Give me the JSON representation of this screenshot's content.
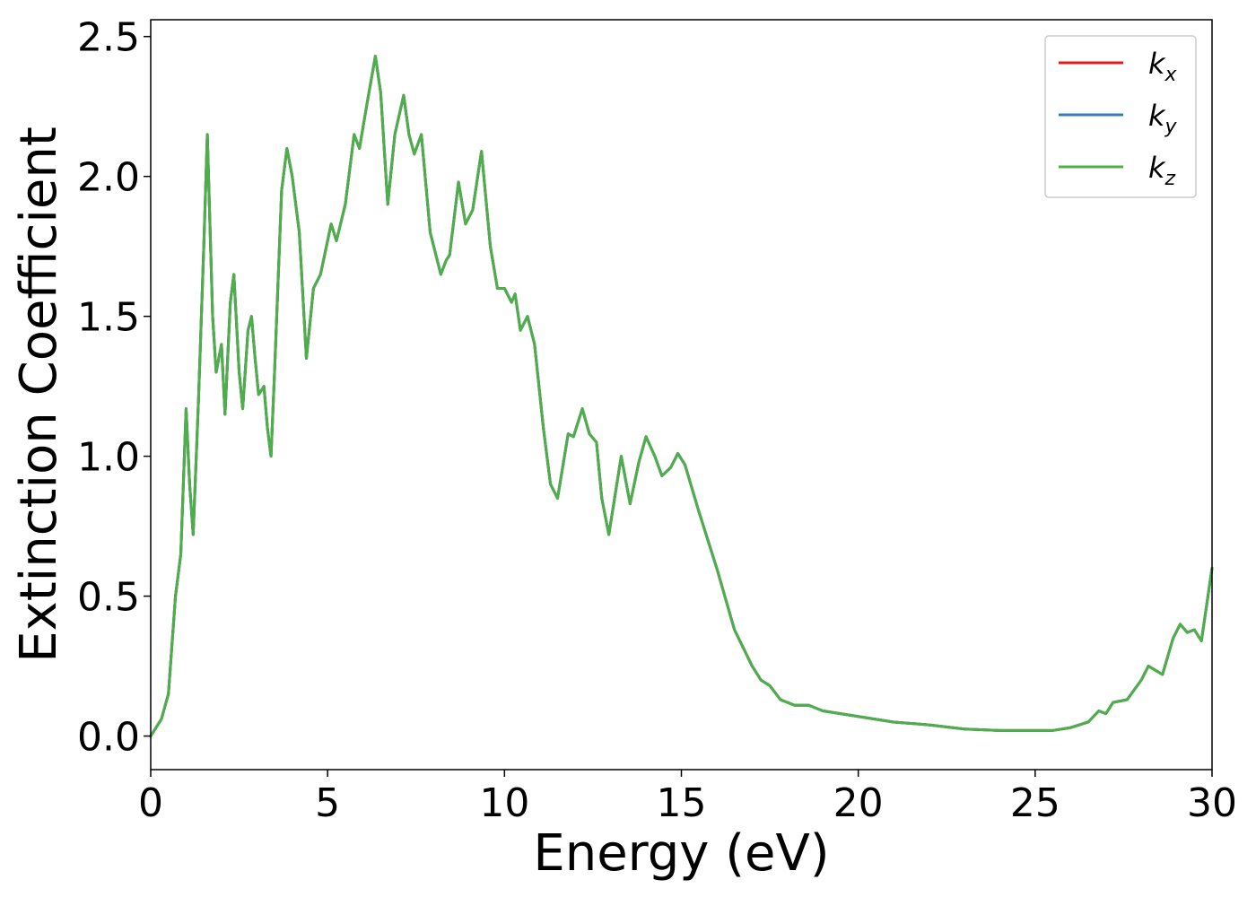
{
  "chart_data": {
    "type": "line",
    "title": "",
    "xlabel": "Energy (eV)",
    "ylabel": "Extinction Coefficient",
    "xlim": [
      0,
      30
    ],
    "ylim": [
      -0.12,
      2.56
    ],
    "xticks": [
      0,
      5,
      10,
      15,
      20,
      25,
      30
    ],
    "xtick_labels": [
      "0",
      "5",
      "10",
      "15",
      "20",
      "25",
      "30"
    ],
    "yticks": [
      0.0,
      0.5,
      1.0,
      1.5,
      2.0,
      2.5
    ],
    "ytick_labels": [
      "0.0",
      "0.5",
      "1.0",
      "1.5",
      "2.0",
      "2.5"
    ],
    "grid": false,
    "legend_position": "top-right",
    "series": [
      {
        "name": "k_x",
        "label_main": "k",
        "label_sub": "x",
        "color": "#e41a1c",
        "x": [
          0,
          0.3,
          0.5,
          0.7,
          0.85,
          1.0,
          1.1,
          1.2,
          1.35,
          1.5,
          1.6,
          1.75,
          1.85,
          2.0,
          2.1,
          2.25,
          2.35,
          2.5,
          2.6,
          2.75,
          2.85,
          2.95,
          3.05,
          3.2,
          3.3,
          3.4,
          3.5,
          3.7,
          3.85,
          4.0,
          4.2,
          4.4,
          4.6,
          4.8,
          5.1,
          5.25,
          5.5,
          5.75,
          5.9,
          6.1,
          6.35,
          6.5,
          6.7,
          6.9,
          7.15,
          7.3,
          7.45,
          7.65,
          7.9,
          8.2,
          8.35,
          8.45,
          8.7,
          8.9,
          9.1,
          9.35,
          9.6,
          9.8,
          10.0,
          10.2,
          10.3,
          10.45,
          10.65,
          10.85,
          11.1,
          11.3,
          11.5,
          11.8,
          11.95,
          12.2,
          12.4,
          12.6,
          12.75,
          12.95,
          13.3,
          13.55,
          13.8,
          14.0,
          14.25,
          14.45,
          14.7,
          14.9,
          15.1,
          15.5,
          16.0,
          16.5,
          17.0,
          17.25,
          17.5,
          17.8,
          18.2,
          18.6,
          19.0,
          19.5,
          20.0,
          21.0,
          22.0,
          23.0,
          24.0,
          25.0,
          25.5,
          26.0,
          26.5,
          26.8,
          27.0,
          27.2,
          27.6,
          28.0,
          28.2,
          28.6,
          28.9,
          29.1,
          29.3,
          29.5,
          29.7,
          30.0
        ],
        "y": [
          0.0,
          0.06,
          0.15,
          0.5,
          0.65,
          1.17,
          0.9,
          0.72,
          1.2,
          1.75,
          2.15,
          1.5,
          1.3,
          1.4,
          1.15,
          1.55,
          1.65,
          1.3,
          1.17,
          1.45,
          1.5,
          1.35,
          1.22,
          1.25,
          1.1,
          1.0,
          1.3,
          1.95,
          2.1,
          2.0,
          1.8,
          1.35,
          1.6,
          1.65,
          1.83,
          1.77,
          1.9,
          2.15,
          2.1,
          2.25,
          2.43,
          2.3,
          1.9,
          2.15,
          2.29,
          2.15,
          2.08,
          2.15,
          1.8,
          1.65,
          1.7,
          1.72,
          1.98,
          1.83,
          1.88,
          2.09,
          1.75,
          1.6,
          1.6,
          1.55,
          1.58,
          1.45,
          1.5,
          1.4,
          1.1,
          0.9,
          0.85,
          1.08,
          1.07,
          1.17,
          1.08,
          1.05,
          0.85,
          0.72,
          1.0,
          0.83,
          0.98,
          1.07,
          1.0,
          0.93,
          0.96,
          1.01,
          0.97,
          0.8,
          0.6,
          0.38,
          0.25,
          0.2,
          0.18,
          0.13,
          0.11,
          0.11,
          0.09,
          0.08,
          0.07,
          0.05,
          0.04,
          0.025,
          0.02,
          0.02,
          0.02,
          0.03,
          0.05,
          0.09,
          0.08,
          0.12,
          0.13,
          0.2,
          0.25,
          0.22,
          0.35,
          0.4,
          0.37,
          0.38,
          0.34,
          0.6
        ]
      },
      {
        "name": "k_y",
        "label_main": "k",
        "label_sub": "y",
        "color": "#377eb8",
        "x": [
          0,
          0.3,
          0.5,
          0.7,
          0.85,
          1.0,
          1.1,
          1.2,
          1.35,
          1.5,
          1.6,
          1.75,
          1.85,
          2.0,
          2.1,
          2.25,
          2.35,
          2.5,
          2.6,
          2.75,
          2.85,
          2.95,
          3.05,
          3.2,
          3.3,
          3.4,
          3.5,
          3.7,
          3.85,
          4.0,
          4.2,
          4.4,
          4.6,
          4.8,
          5.1,
          5.25,
          5.5,
          5.75,
          5.9,
          6.1,
          6.35,
          6.5,
          6.7,
          6.9,
          7.15,
          7.3,
          7.45,
          7.65,
          7.9,
          8.2,
          8.35,
          8.45,
          8.7,
          8.9,
          9.1,
          9.35,
          9.6,
          9.8,
          10.0,
          10.2,
          10.3,
          10.45,
          10.65,
          10.85,
          11.1,
          11.3,
          11.5,
          11.8,
          11.95,
          12.2,
          12.4,
          12.6,
          12.75,
          12.95,
          13.3,
          13.55,
          13.8,
          14.0,
          14.25,
          14.45,
          14.7,
          14.9,
          15.1,
          15.5,
          16.0,
          16.5,
          17.0,
          17.25,
          17.5,
          17.8,
          18.2,
          18.6,
          19.0,
          19.5,
          20.0,
          21.0,
          22.0,
          23.0,
          24.0,
          25.0,
          25.5,
          26.0,
          26.5,
          26.8,
          27.0,
          27.2,
          27.6,
          28.0,
          28.2,
          28.6,
          28.9,
          29.1,
          29.3,
          29.5,
          29.7,
          30.0
        ],
        "y": [
          0.0,
          0.06,
          0.15,
          0.5,
          0.65,
          1.17,
          0.9,
          0.72,
          1.2,
          1.75,
          2.15,
          1.5,
          1.3,
          1.4,
          1.15,
          1.55,
          1.65,
          1.3,
          1.17,
          1.45,
          1.5,
          1.35,
          1.22,
          1.25,
          1.1,
          1.0,
          1.3,
          1.95,
          2.1,
          2.0,
          1.8,
          1.35,
          1.6,
          1.65,
          1.83,
          1.77,
          1.9,
          2.15,
          2.1,
          2.25,
          2.43,
          2.3,
          1.9,
          2.15,
          2.29,
          2.15,
          2.08,
          2.15,
          1.8,
          1.65,
          1.7,
          1.72,
          1.98,
          1.83,
          1.88,
          2.09,
          1.75,
          1.6,
          1.6,
          1.55,
          1.58,
          1.45,
          1.5,
          1.4,
          1.1,
          0.9,
          0.85,
          1.08,
          1.07,
          1.17,
          1.08,
          1.05,
          0.85,
          0.72,
          1.0,
          0.83,
          0.98,
          1.07,
          1.0,
          0.93,
          0.96,
          1.01,
          0.97,
          0.8,
          0.6,
          0.38,
          0.25,
          0.2,
          0.18,
          0.13,
          0.11,
          0.11,
          0.09,
          0.08,
          0.07,
          0.05,
          0.04,
          0.025,
          0.02,
          0.02,
          0.02,
          0.03,
          0.05,
          0.09,
          0.08,
          0.12,
          0.13,
          0.2,
          0.25,
          0.22,
          0.35,
          0.4,
          0.37,
          0.38,
          0.34,
          0.6
        ]
      },
      {
        "name": "k_z",
        "label_main": "k",
        "label_sub": "z",
        "color": "#4daf4a",
        "x": [
          0,
          0.3,
          0.5,
          0.7,
          0.85,
          1.0,
          1.1,
          1.2,
          1.35,
          1.5,
          1.6,
          1.75,
          1.85,
          2.0,
          2.1,
          2.25,
          2.35,
          2.5,
          2.6,
          2.75,
          2.85,
          2.95,
          3.05,
          3.2,
          3.3,
          3.4,
          3.5,
          3.7,
          3.85,
          4.0,
          4.2,
          4.4,
          4.6,
          4.8,
          5.1,
          5.25,
          5.5,
          5.75,
          5.9,
          6.1,
          6.35,
          6.5,
          6.7,
          6.9,
          7.15,
          7.3,
          7.45,
          7.65,
          7.9,
          8.2,
          8.35,
          8.45,
          8.7,
          8.9,
          9.1,
          9.35,
          9.6,
          9.8,
          10.0,
          10.2,
          10.3,
          10.45,
          10.65,
          10.85,
          11.1,
          11.3,
          11.5,
          11.8,
          11.95,
          12.2,
          12.4,
          12.6,
          12.75,
          12.95,
          13.3,
          13.55,
          13.8,
          14.0,
          14.25,
          14.45,
          14.7,
          14.9,
          15.1,
          15.5,
          16.0,
          16.5,
          17.0,
          17.25,
          17.5,
          17.8,
          18.2,
          18.6,
          19.0,
          19.5,
          20.0,
          21.0,
          22.0,
          23.0,
          24.0,
          25.0,
          25.5,
          26.0,
          26.5,
          26.8,
          27.0,
          27.2,
          27.6,
          28.0,
          28.2,
          28.6,
          28.9,
          29.1,
          29.3,
          29.5,
          29.7,
          30.0
        ],
        "y": [
          0.0,
          0.06,
          0.15,
          0.5,
          0.65,
          1.17,
          0.9,
          0.72,
          1.2,
          1.75,
          2.15,
          1.5,
          1.3,
          1.4,
          1.15,
          1.55,
          1.65,
          1.3,
          1.17,
          1.45,
          1.5,
          1.35,
          1.22,
          1.25,
          1.1,
          1.0,
          1.3,
          1.95,
          2.1,
          2.0,
          1.8,
          1.35,
          1.6,
          1.65,
          1.83,
          1.77,
          1.9,
          2.15,
          2.1,
          2.25,
          2.43,
          2.3,
          1.9,
          2.15,
          2.29,
          2.15,
          2.08,
          2.15,
          1.8,
          1.65,
          1.7,
          1.72,
          1.98,
          1.83,
          1.88,
          2.09,
          1.75,
          1.6,
          1.6,
          1.55,
          1.58,
          1.45,
          1.5,
          1.4,
          1.1,
          0.9,
          0.85,
          1.08,
          1.07,
          1.17,
          1.08,
          1.05,
          0.85,
          0.72,
          1.0,
          0.83,
          0.98,
          1.07,
          1.0,
          0.93,
          0.96,
          1.01,
          0.97,
          0.8,
          0.6,
          0.38,
          0.25,
          0.2,
          0.18,
          0.13,
          0.11,
          0.11,
          0.09,
          0.08,
          0.07,
          0.05,
          0.04,
          0.025,
          0.02,
          0.02,
          0.02,
          0.03,
          0.05,
          0.09,
          0.08,
          0.12,
          0.13,
          0.2,
          0.25,
          0.22,
          0.35,
          0.4,
          0.37,
          0.38,
          0.34,
          0.6
        ]
      }
    ]
  }
}
